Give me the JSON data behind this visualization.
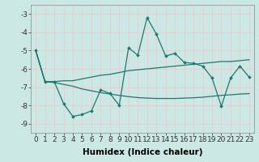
{
  "xlabel": "Humidex (Indice chaleur)",
  "background_color": "#cce8e4",
  "grid_color": "#f0c8c8",
  "line_color": "#1a7a6e",
  "x": [
    0,
    1,
    2,
    3,
    4,
    5,
    6,
    7,
    8,
    9,
    10,
    11,
    12,
    13,
    14,
    15,
    16,
    17,
    18,
    19,
    20,
    21,
    22,
    23
  ],
  "y_main": [
    -5.0,
    -6.7,
    -6.7,
    -7.9,
    -8.6,
    -8.5,
    -8.3,
    -7.15,
    -7.35,
    -8.0,
    -4.85,
    -5.25,
    -3.2,
    -4.1,
    -5.3,
    -5.15,
    -5.65,
    -5.7,
    -5.85,
    -6.5,
    -8.05,
    -6.5,
    -5.85,
    -6.45
  ],
  "y_upper": [
    -5.0,
    -6.7,
    -6.7,
    -6.65,
    -6.65,
    -6.55,
    -6.45,
    -6.35,
    -6.3,
    -6.2,
    -6.1,
    -6.05,
    -6.0,
    -5.95,
    -5.9,
    -5.85,
    -5.8,
    -5.75,
    -5.7,
    -5.65,
    -5.6,
    -5.6,
    -5.55,
    -5.5
  ],
  "y_lower": [
    -5.0,
    -6.7,
    -6.75,
    -6.85,
    -6.95,
    -7.1,
    -7.2,
    -7.3,
    -7.38,
    -7.45,
    -7.52,
    -7.57,
    -7.6,
    -7.62,
    -7.62,
    -7.62,
    -7.6,
    -7.58,
    -7.55,
    -7.5,
    -7.45,
    -7.42,
    -7.38,
    -7.35
  ],
  "ylim": [
    -9.5,
    -2.5
  ],
  "xlim": [
    -0.5,
    23.5
  ],
  "yticks": [
    -9,
    -8,
    -7,
    -6,
    -5,
    -4,
    -3
  ],
  "xticks": [
    0,
    1,
    2,
    3,
    4,
    5,
    6,
    7,
    8,
    9,
    10,
    11,
    12,
    13,
    14,
    15,
    16,
    17,
    18,
    19,
    20,
    21,
    22,
    23
  ],
  "axis_fontsize": 7,
  "tick_fontsize": 6.5,
  "xlabel_fontsize": 7.5
}
